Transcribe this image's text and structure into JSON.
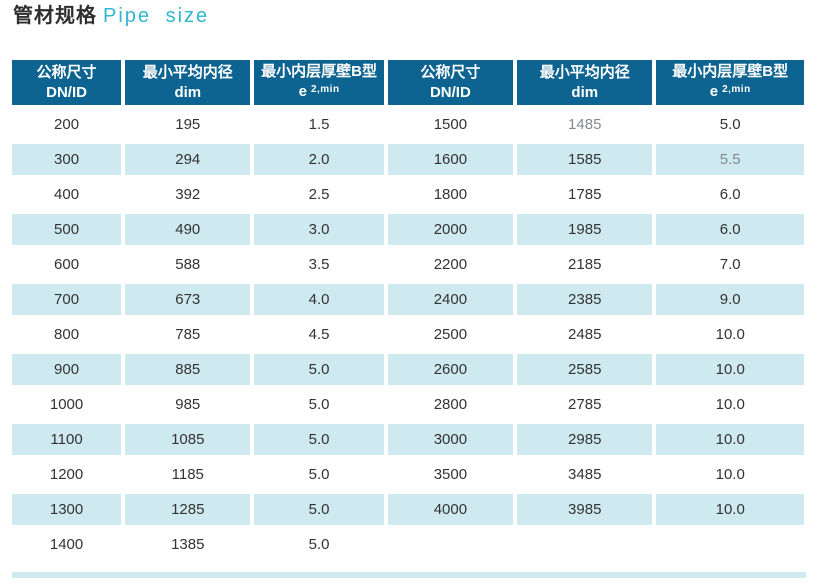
{
  "title": {
    "zh": "管材规格",
    "en": "Pipe size"
  },
  "colors": {
    "header_bg": "#0e6490",
    "stripe": "#cfe9f1",
    "accent": "#2fb7cf",
    "muted_text": "#828a8f"
  },
  "table": {
    "headers": [
      {
        "line1": "公称尺寸",
        "line2": "DN/ID"
      },
      {
        "line1": "最小平均内径",
        "line2": "dim"
      },
      {
        "line1": "最小内层厚壁B型",
        "line2_main": "e",
        "line2_sup": "2,min"
      },
      {
        "line1": "公称尺寸",
        "line2": "DN/ID"
      },
      {
        "line1": "最小平均内径",
        "line2": "dim"
      },
      {
        "line1": "最小内层厚壁B型",
        "line2_main": "e",
        "line2_sup": "2,min"
      }
    ],
    "rows": [
      [
        "200",
        "195",
        "1.5",
        "1500",
        "1485",
        "5.0"
      ],
      [
        "300",
        "294",
        "2.0",
        "1600",
        "1585",
        "5.5"
      ],
      [
        "400",
        "392",
        "2.5",
        "1800",
        "1785",
        "6.0"
      ],
      [
        "500",
        "490",
        "3.0",
        "2000",
        "1985",
        "6.0"
      ],
      [
        "600",
        "588",
        "3.5",
        "2200",
        "2185",
        "7.0"
      ],
      [
        "700",
        "673",
        "4.0",
        "2400",
        "2385",
        "9.0"
      ],
      [
        "800",
        "785",
        "4.5",
        "2500",
        "2485",
        "10.0"
      ],
      [
        "900",
        "885",
        "5.0",
        "2600",
        "2585",
        "10.0"
      ],
      [
        "1000",
        "985",
        "5.0",
        "2800",
        "2785",
        "10.0"
      ],
      [
        "1100",
        "1085",
        "5.0",
        "3000",
        "2985",
        "10.0"
      ],
      [
        "1200",
        "1185",
        "5.0",
        "3500",
        "3485",
        "10.0"
      ],
      [
        "1300",
        "1285",
        "5.0",
        "4000",
        "3985",
        "10.0"
      ],
      [
        "1400",
        "1385",
        "5.0",
        "",
        "",
        ""
      ]
    ],
    "muted_cells": [
      [
        0,
        4
      ],
      [
        1,
        5
      ]
    ]
  }
}
